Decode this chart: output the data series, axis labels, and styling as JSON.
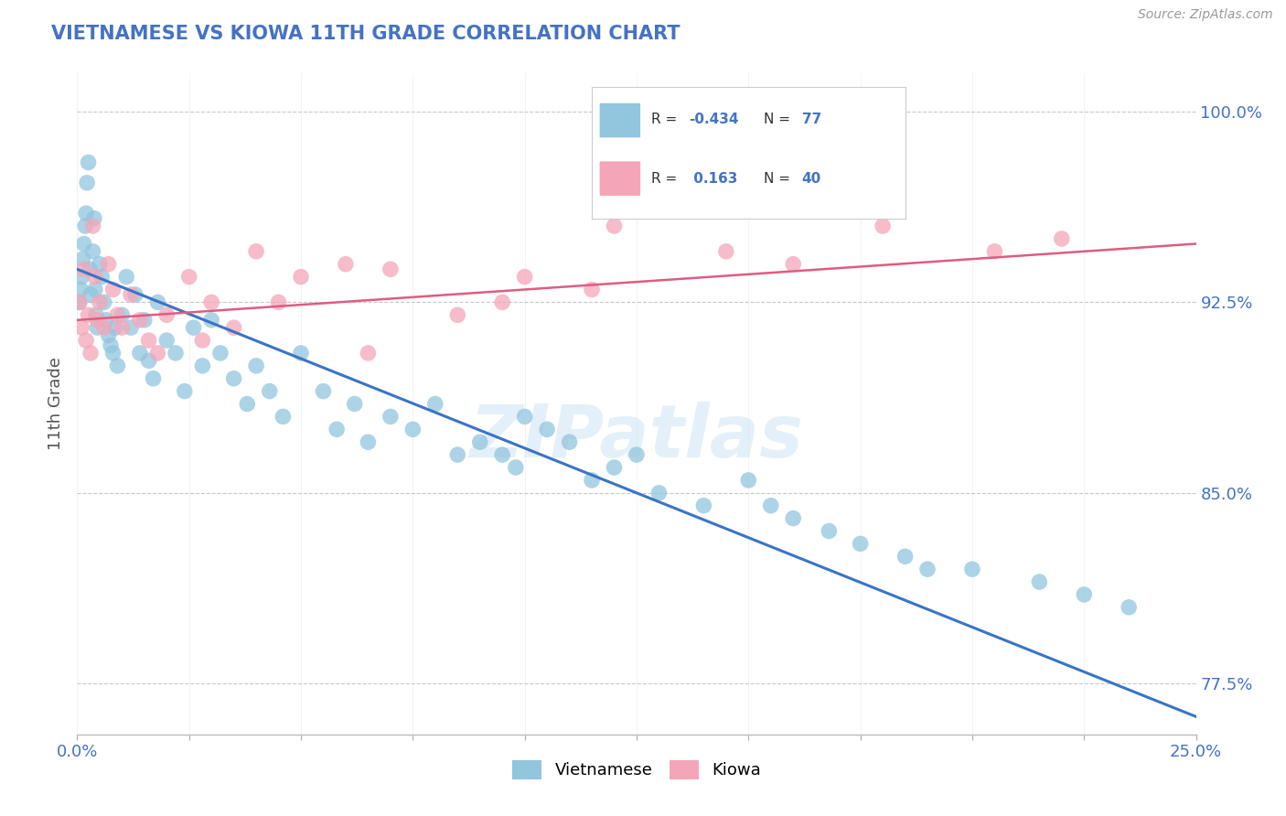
{
  "title": "VIETNAMESE VS KIOWA 11TH GRADE CORRELATION CHART",
  "source_text": "Source: ZipAtlas.com",
  "ylabel": "11th Grade",
  "xlim": [
    0.0,
    25.0
  ],
  "ylim": [
    75.5,
    101.5
  ],
  "yticks": [
    77.5,
    85.0,
    92.5,
    100.0
  ],
  "ytick_labels": [
    "77.5%",
    "85.0%",
    "92.5%",
    "100.0%"
  ],
  "blue_color": "#92c5de",
  "pink_color": "#f4a6b8",
  "blue_line_color": "#3a75c4",
  "pink_line_color": "#e05c80",
  "background_color": "#ffffff",
  "watermark_text": "ZIPatlas",
  "legend_r_blue": "-0.434",
  "legend_n_blue": "77",
  "legend_r_pink": "0.163",
  "legend_n_pink": "40",
  "blue_x": [
    0.05,
    0.08,
    0.1,
    0.12,
    0.15,
    0.18,
    0.2,
    0.22,
    0.25,
    0.28,
    0.3,
    0.35,
    0.38,
    0.4,
    0.42,
    0.45,
    0.5,
    0.55,
    0.6,
    0.65,
    0.7,
    0.75,
    0.8,
    0.85,
    0.9,
    1.0,
    1.1,
    1.2,
    1.3,
    1.4,
    1.5,
    1.6,
    1.7,
    1.8,
    2.0,
    2.2,
    2.4,
    2.6,
    2.8,
    3.0,
    3.2,
    3.5,
    3.8,
    4.0,
    4.3,
    4.6,
    5.0,
    5.5,
    5.8,
    6.2,
    6.5,
    7.0,
    7.5,
    8.0,
    8.5,
    9.0,
    9.5,
    10.0,
    11.0,
    12.0,
    13.0,
    14.0,
    15.0,
    16.0,
    17.5,
    18.5,
    20.0,
    21.5,
    22.5,
    23.5,
    15.5,
    16.8,
    19.0,
    12.5,
    11.5,
    10.5,
    9.8
  ],
  "blue_y": [
    92.5,
    93.0,
    93.5,
    94.2,
    94.8,
    95.5,
    96.0,
    97.2,
    98.0,
    93.8,
    92.8,
    94.5,
    95.8,
    93.0,
    92.0,
    91.5,
    94.0,
    93.5,
    92.5,
    91.8,
    91.2,
    90.8,
    90.5,
    91.5,
    90.0,
    92.0,
    93.5,
    91.5,
    92.8,
    90.5,
    91.8,
    90.2,
    89.5,
    92.5,
    91.0,
    90.5,
    89.0,
    91.5,
    90.0,
    91.8,
    90.5,
    89.5,
    88.5,
    90.0,
    89.0,
    88.0,
    90.5,
    89.0,
    87.5,
    88.5,
    87.0,
    88.0,
    87.5,
    88.5,
    86.5,
    87.0,
    86.5,
    88.0,
    87.0,
    86.0,
    85.0,
    84.5,
    85.5,
    84.0,
    83.0,
    82.5,
    82.0,
    81.5,
    81.0,
    80.5,
    84.5,
    83.5,
    82.0,
    86.5,
    85.5,
    87.5,
    86.0
  ],
  "pink_x": [
    0.05,
    0.1,
    0.15,
    0.2,
    0.25,
    0.3,
    0.35,
    0.4,
    0.45,
    0.5,
    0.6,
    0.7,
    0.8,
    0.9,
    1.0,
    1.2,
    1.4,
    1.6,
    1.8,
    2.0,
    2.5,
    3.0,
    3.5,
    4.0,
    4.5,
    5.0,
    6.0,
    7.0,
    8.5,
    10.0,
    12.0,
    14.5,
    16.0,
    18.0,
    20.5,
    22.0,
    2.8,
    9.5,
    11.5,
    6.5
  ],
  "pink_y": [
    92.5,
    91.5,
    93.8,
    91.0,
    92.0,
    90.5,
    95.5,
    93.5,
    91.8,
    92.5,
    91.5,
    94.0,
    93.0,
    92.0,
    91.5,
    92.8,
    91.8,
    91.0,
    90.5,
    92.0,
    93.5,
    92.5,
    91.5,
    94.5,
    92.5,
    93.5,
    94.0,
    93.8,
    92.0,
    93.5,
    95.5,
    94.5,
    94.0,
    95.5,
    94.5,
    95.0,
    91.0,
    92.5,
    93.0,
    90.5
  ]
}
